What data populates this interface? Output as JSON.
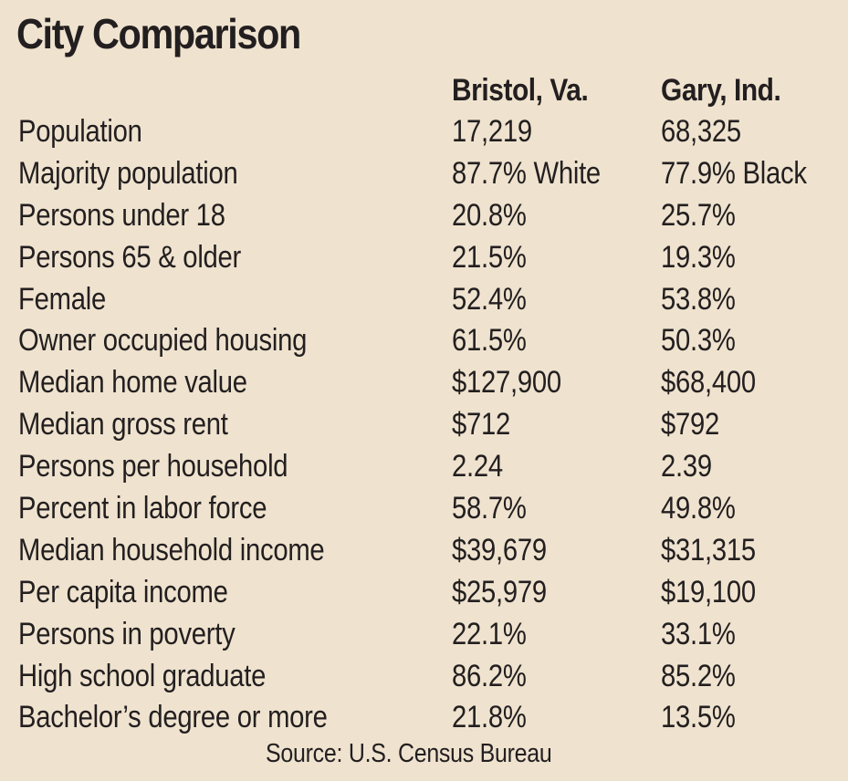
{
  "title": "City Comparison",
  "columns": [
    "Bristol, Va.",
    "Gary, Ind."
  ],
  "rows": [
    {
      "label": "Population",
      "bristol": "17,219",
      "gary": "68,325"
    },
    {
      "label": "Majority population",
      "bristol": "87.7% White",
      "gary": "77.9% Black"
    },
    {
      "label": "Persons under 18",
      "bristol": "20.8%",
      "gary": "25.7%"
    },
    {
      "label": "Persons 65 & older",
      "bristol": "21.5%",
      "gary": "19.3%"
    },
    {
      "label": "Female",
      "bristol": "52.4%",
      "gary": "53.8%"
    },
    {
      "label": "Owner occupied housing",
      "bristol": "61.5%",
      "gary": "50.3%"
    },
    {
      "label": "Median home value",
      "bristol": "$127,900",
      "gary": "$68,400"
    },
    {
      "label": "Median gross rent",
      "bristol": "$712",
      "gary": "$792"
    },
    {
      "label": "Persons per household",
      "bristol": "2.24",
      "gary": "2.39"
    },
    {
      "label": "Percent in labor force",
      "bristol": "58.7%",
      "gary": "49.8%"
    },
    {
      "label": "Median household income",
      "bristol": "$39,679",
      "gary": "$31,315"
    },
    {
      "label": "Per capita income",
      "bristol": "$25,979",
      "gary": "$19,100"
    },
    {
      "label": "Persons in poverty",
      "bristol": "22.1%",
      "gary": "33.1%"
    },
    {
      "label": "High school graduate",
      "bristol": "86.2%",
      "gary": "85.2%"
    },
    {
      "label": "Bachelor’s degree or more",
      "bristol": "21.8%",
      "gary": "13.5%"
    }
  ],
  "source": "Source: U.S. Census Bureau",
  "colors": {
    "background": "#efe3cf",
    "text": "#231f20"
  }
}
